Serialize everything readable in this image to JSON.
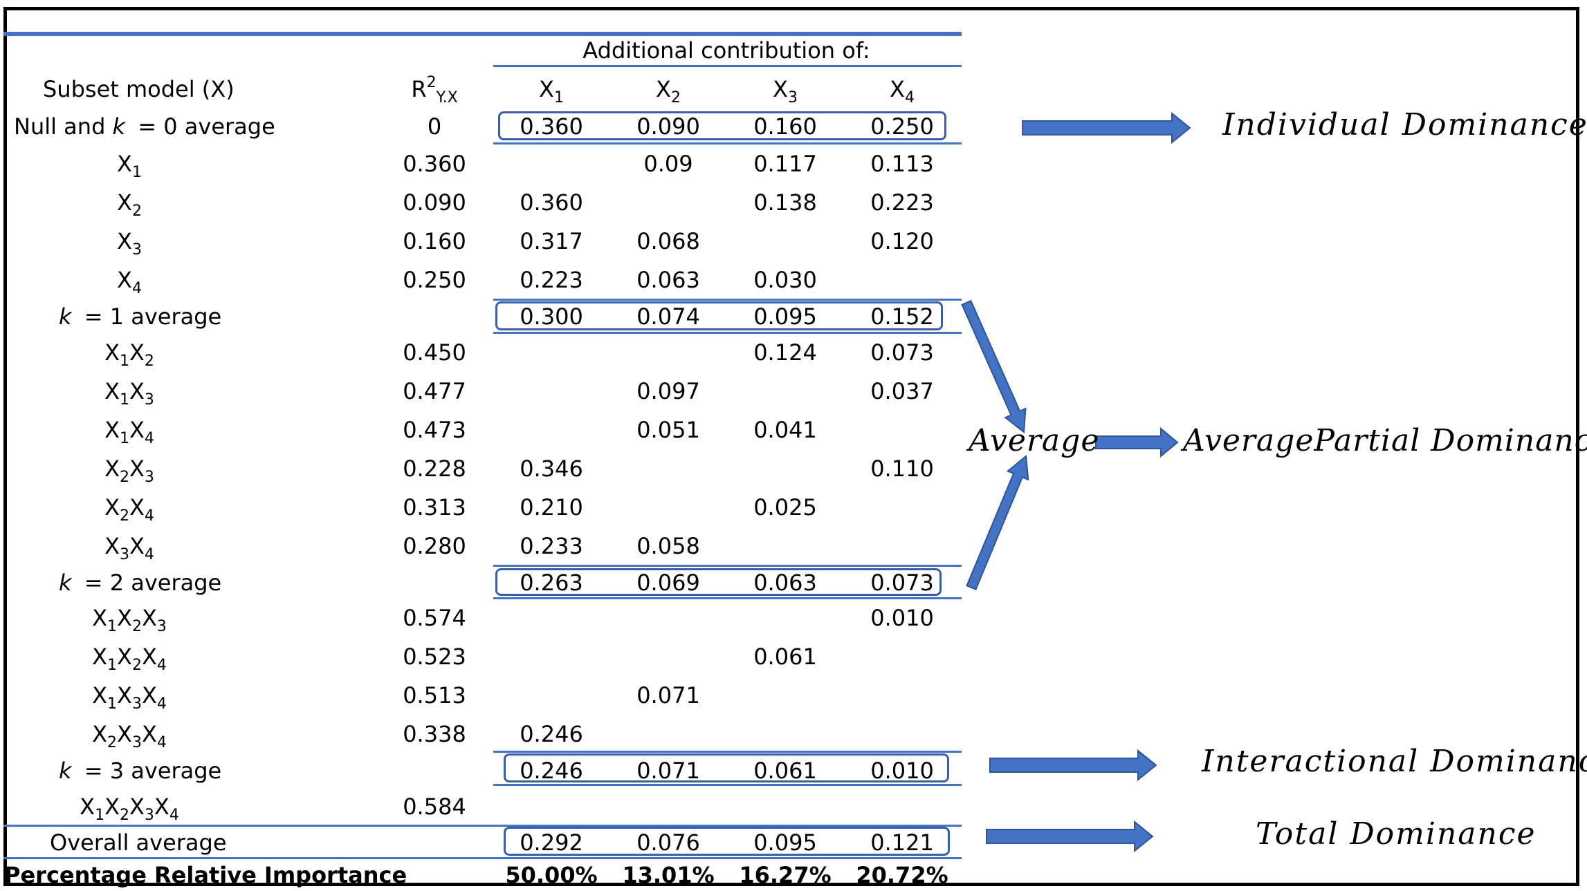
{
  "header": {
    "additional_contribution": "Additional contribution of:",
    "subset_model": "Subset model (X)",
    "r2": {
      "base": "R",
      "sup": "2",
      "sub": "Y.X"
    },
    "columns": [
      {
        "base": "X",
        "sub": "1"
      },
      {
        "base": "X",
        "sub": "2"
      },
      {
        "base": "X",
        "sub": "3"
      },
      {
        "base": "X",
        "sub": "4"
      }
    ]
  },
  "rows": [
    {
      "type": "average",
      "label": "Null and k = 0 average",
      "label_parts": [
        "Null and ",
        "k",
        " = 0 average"
      ],
      "r2": "0",
      "values": [
        "0.360",
        "0.090",
        "0.160",
        "0.250"
      ]
    },
    {
      "type": "subset",
      "subset": [
        "1"
      ],
      "r2": "0.360",
      "values": [
        "",
        "0.09",
        "0.117",
        "0.113"
      ]
    },
    {
      "type": "subset",
      "subset": [
        "2"
      ],
      "r2": "0.090",
      "values": [
        "0.360",
        "",
        "0.138",
        "0.223"
      ]
    },
    {
      "type": "subset",
      "subset": [
        "3"
      ],
      "r2": "0.160",
      "values": [
        "0.317",
        "0.068",
        "",
        "0.120"
      ]
    },
    {
      "type": "subset",
      "subset": [
        "4"
      ],
      "r2": "0.250",
      "values": [
        "0.223",
        "0.063",
        "0.030",
        ""
      ]
    },
    {
      "type": "average",
      "label": "k = 1 average",
      "label_parts": [
        "",
        "k",
        " = 1 average"
      ],
      "r2": "",
      "values": [
        "0.300",
        "0.074",
        "0.095",
        "0.152"
      ]
    },
    {
      "type": "subset",
      "subset": [
        "1",
        "2"
      ],
      "r2": "0.450",
      "values": [
        "",
        "",
        "0.124",
        "0.073"
      ]
    },
    {
      "type": "subset",
      "subset": [
        "1",
        "3"
      ],
      "r2": "0.477",
      "values": [
        "",
        "0.097",
        "",
        "0.037"
      ]
    },
    {
      "type": "subset",
      "subset": [
        "1",
        "4"
      ],
      "r2": "0.473",
      "values": [
        "",
        "0.051",
        "0.041",
        ""
      ]
    },
    {
      "type": "subset",
      "subset": [
        "2",
        "3"
      ],
      "r2": "0.228",
      "values": [
        "0.346",
        "",
        "",
        "0.110"
      ]
    },
    {
      "type": "subset",
      "subset": [
        "2",
        "4"
      ],
      "r2": "0.313",
      "values": [
        "0.210",
        "",
        "0.025",
        ""
      ]
    },
    {
      "type": "subset",
      "subset": [
        "3",
        "4"
      ],
      "r2": "0.280",
      "values": [
        "0.233",
        "0.058",
        "",
        ""
      ]
    },
    {
      "type": "average",
      "label": "k = 2 average",
      "label_parts": [
        "",
        "k",
        " = 2 average"
      ],
      "r2": "",
      "values": [
        "0.263",
        "0.069",
        "0.063",
        "0.073"
      ]
    },
    {
      "type": "subset",
      "subset": [
        "1",
        "2",
        "3"
      ],
      "r2": "0.574",
      "values": [
        "",
        "",
        "",
        "0.010"
      ]
    },
    {
      "type": "subset",
      "subset": [
        "1",
        "2",
        "4"
      ],
      "r2": "0.523",
      "values": [
        "",
        "",
        "0.061",
        ""
      ]
    },
    {
      "type": "subset",
      "subset": [
        "1",
        "3",
        "4"
      ],
      "r2": "0.513",
      "values": [
        "",
        "0.071",
        "",
        ""
      ]
    },
    {
      "type": "subset",
      "subset": [
        "2",
        "3",
        "4"
      ],
      "r2": "0.338",
      "values": [
        "0.246",
        "",
        "",
        ""
      ]
    },
    {
      "type": "average",
      "label": "k = 3 average",
      "label_parts": [
        "",
        "k",
        " = 3 average"
      ],
      "r2": "",
      "values": [
        "0.246",
        "0.071",
        "0.061",
        "0.010"
      ]
    },
    {
      "type": "subset",
      "subset": [
        "1",
        "2",
        "3",
        "4"
      ],
      "r2": "0.584",
      "values": [
        "",
        "",
        "",
        ""
      ]
    },
    {
      "type": "overall",
      "label": "Overall average",
      "r2": "",
      "values": [
        "0.292",
        "0.076",
        "0.095",
        "0.121"
      ]
    },
    {
      "type": "percent",
      "label": "Percentage Relative Importance",
      "r2": "",
      "values": [
        "50.00%",
        "13.01%",
        "16.27%",
        "20.72%"
      ]
    }
  ],
  "annotations": {
    "individual": "Individual Dominance",
    "average": "Average",
    "average_partial": "AveragePartial Dominance",
    "interactional": "Interactional Dominance",
    "total": "Total Dominance"
  },
  "colors": {
    "accent_blue": "#4472C4",
    "box_border": "#3a5fa8",
    "arrow_fill": "#4472C4",
    "arrow_stroke": "#2f5597"
  }
}
